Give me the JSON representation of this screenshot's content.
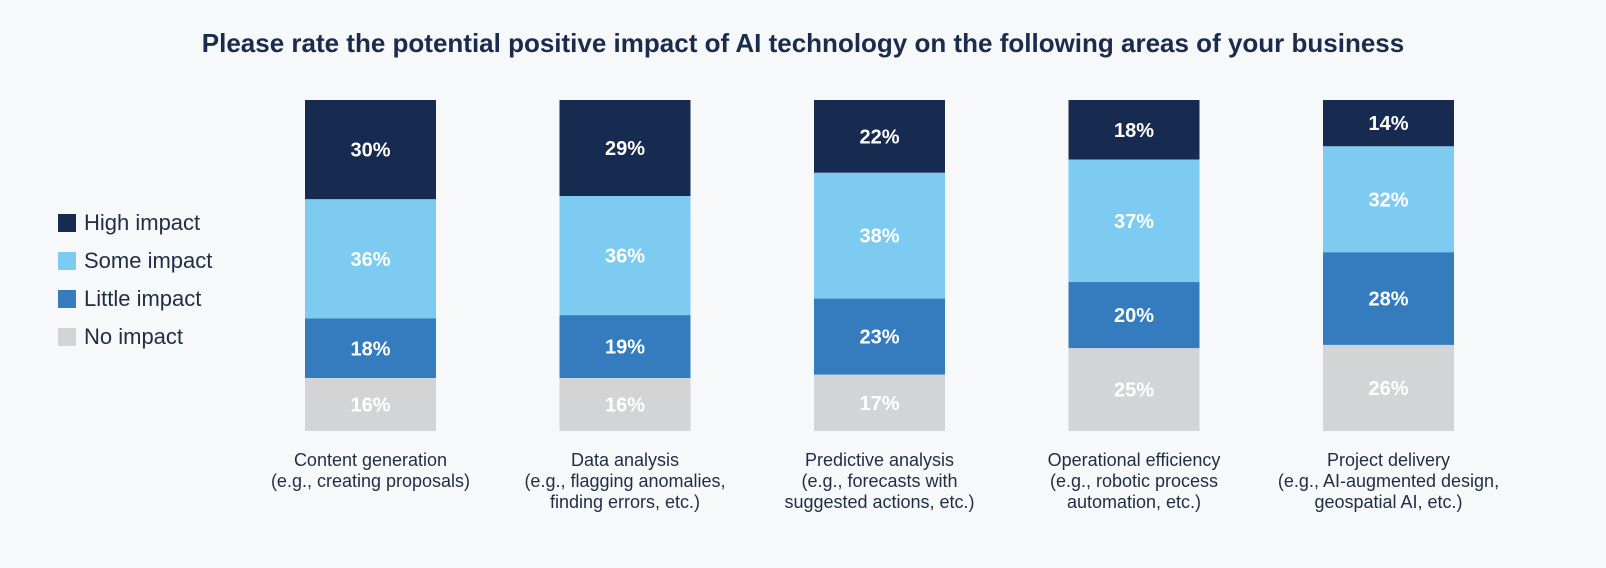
{
  "chart_data": {
    "type": "bar",
    "stacked": true,
    "title": "Please rate the potential positive impact of AI technology on the following areas of your business",
    "categories": [
      [
        "Content generation",
        "(e.g., creating proposals)"
      ],
      [
        "Data analysis",
        "(e.g., flagging anomalies,",
        "finding errors, etc.)"
      ],
      [
        "Predictive analysis",
        "(e.g., forecasts with",
        "suggested actions, etc.)"
      ],
      [
        "Operational efficiency",
        "(e.g., robotic process",
        "automation, etc.)"
      ],
      [
        "Project delivery",
        "(e.g., AI-augmented design,",
        "geospatial AI, etc.)"
      ]
    ],
    "series": [
      {
        "name": "High impact",
        "color": "#172a4f",
        "values": [
          30,
          29,
          22,
          18,
          14
        ]
      },
      {
        "name": "Some impact",
        "color": "#7ecbf1",
        "values": [
          36,
          36,
          38,
          37,
          32
        ]
      },
      {
        "name": "Little impact",
        "color": "#347cbd",
        "values": [
          18,
          19,
          23,
          20,
          28
        ]
      },
      {
        "name": "No impact",
        "color": "#d3d4d6",
        "values": [
          16,
          16,
          17,
          25,
          26
        ]
      }
    ],
    "unit": "%",
    "legend_position": "left",
    "grid": false
  }
}
